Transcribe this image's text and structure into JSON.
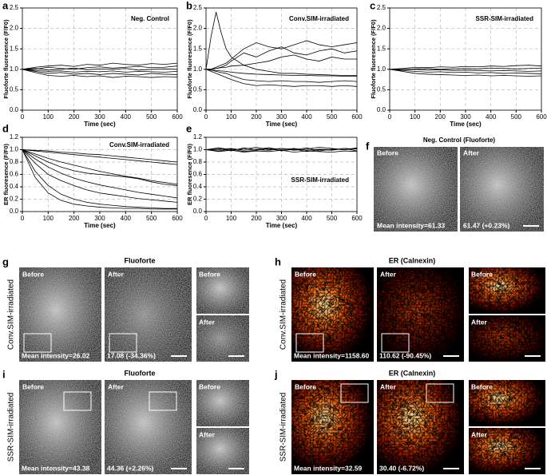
{
  "chart_data": [
    {
      "type": "line",
      "panel": "a",
      "annotation": "Neg. Control",
      "xlabel": "Time (sec)",
      "ylabel": "Fluoforte fluoresence (F/F0)",
      "x": [
        0,
        50,
        100,
        150,
        200,
        250,
        300,
        350,
        400,
        450,
        500,
        550,
        600
      ],
      "color": "#000000",
      "series": [
        {
          "values": [
            1,
            1.05,
            1.08,
            1.1,
            1.07,
            1.12,
            1.1,
            1.15,
            1.12,
            1.1,
            1.14,
            1.12,
            1.15
          ]
        },
        {
          "values": [
            1,
            0.95,
            0.9,
            0.92,
            0.88,
            0.9,
            0.87,
            0.9,
            0.88,
            0.86,
            0.9,
            0.88,
            0.87
          ]
        },
        {
          "values": [
            1,
            1.02,
            0.98,
            1.0,
            1.03,
            0.99,
            1.01,
            1.0,
            1.02,
            0.98,
            1.0,
            1.01,
            1.0
          ]
        },
        {
          "values": [
            1,
            0.92,
            0.85,
            0.83,
            0.85,
            0.82,
            0.84,
            0.8,
            0.83,
            0.82,
            0.8,
            0.82,
            0.81
          ]
        },
        {
          "values": [
            1,
            1.0,
            1.05,
            1.02,
            1.0,
            1.04,
            1.06,
            1.03,
            1.05,
            1.07,
            1.04,
            1.05,
            1.08
          ]
        },
        {
          "values": [
            1,
            0.97,
            0.95,
            0.96,
            0.93,
            0.95,
            0.94,
            0.96,
            0.93,
            0.95,
            0.94,
            0.93,
            0.95
          ]
        }
      ],
      "xlim": [
        0,
        600
      ],
      "xticks": [
        0,
        100,
        200,
        300,
        400,
        500,
        600
      ],
      "ylim": [
        0,
        2.5
      ],
      "yticks": [
        {
          "value": 0,
          "label": "0.0"
        },
        0.5,
        {
          "value": 1,
          "label": "1.0"
        },
        1.5,
        {
          "value": 2,
          "label": "2.0"
        },
        2.5
      ],
      "grid": true
    },
    {
      "type": "line",
      "panel": "b",
      "annotation": "Conv.SIM-irradiated",
      "xlabel": "Time (sec)",
      "ylabel": "Fluoforte fluoresence (F/F0)",
      "x": [
        0,
        20,
        40,
        60,
        80,
        100,
        150,
        200,
        250,
        300,
        350,
        400,
        450,
        500,
        550,
        600
      ],
      "color": "#000000",
      "series": [
        {
          "values": [
            1,
            1.8,
            2.4,
            1.9,
            1.5,
            1.3,
            1.1,
            1.0,
            0.95,
            0.9,
            0.9,
            0.88,
            0.87,
            0.86,
            0.85,
            0.85
          ]
        },
        {
          "values": [
            1,
            1,
            1.05,
            1.1,
            1.15,
            1.25,
            1.5,
            1.65,
            1.55,
            1.5,
            1.6,
            1.7,
            1.6,
            1.55,
            1.6,
            1.65
          ]
        },
        {
          "values": [
            1,
            1,
            1.02,
            1.05,
            1.1,
            1.2,
            1.4,
            1.3,
            1.45,
            1.55,
            1.4,
            1.35,
            1.45,
            1.5,
            1.4,
            1.45
          ]
        },
        {
          "values": [
            1,
            1,
            1.02,
            1.04,
            1.05,
            1.08,
            1.1,
            1.15,
            1.2,
            1.3,
            1.35,
            1.25,
            1.2,
            1.3,
            1.25,
            1.25
          ]
        },
        {
          "values": [
            1,
            0.95,
            0.9,
            0.85,
            0.8,
            0.75,
            0.65,
            0.6,
            0.62,
            0.6,
            0.58,
            0.6,
            0.6,
            0.58,
            0.6,
            0.58
          ]
        },
        {
          "values": [
            1,
            0.98,
            0.95,
            0.92,
            0.9,
            0.85,
            0.75,
            0.72,
            0.7,
            0.72,
            0.7,
            0.7,
            0.68,
            0.7,
            0.72,
            0.7
          ]
        },
        {
          "values": [
            1,
            0.98,
            0.97,
            0.96,
            0.95,
            0.93,
            0.9,
            0.88,
            0.87,
            0.86,
            0.85,
            0.85,
            0.84,
            0.84,
            0.83,
            0.83
          ]
        }
      ],
      "xlim": [
        0,
        600
      ],
      "xticks": [
        0,
        100,
        200,
        300,
        400,
        500,
        600
      ],
      "ylim": [
        0,
        2.5
      ],
      "yticks": [
        {
          "value": 0,
          "label": "0.0"
        },
        0.5,
        {
          "value": 1,
          "label": "1.0"
        },
        1.5,
        {
          "value": 2,
          "label": "2.0"
        },
        2.5
      ],
      "grid": true
    },
    {
      "type": "line",
      "panel": "c",
      "annotation": "SSR-SIM-irradiated",
      "xlabel": "Time (sec)",
      "ylabel": "Fluoforte fluoresence (F/F0)",
      "x": [
        0,
        50,
        100,
        150,
        200,
        250,
        300,
        350,
        400,
        450,
        500,
        550,
        600
      ],
      "color": "#000000",
      "series": [
        {
          "values": [
            1,
            1.02,
            1.05,
            1.04,
            1.06,
            1.05,
            1.07,
            1.06,
            1.08,
            1.07,
            1.09,
            1.1,
            1.08
          ]
        },
        {
          "values": [
            1,
            0.97,
            0.95,
            0.93,
            0.94,
            0.92,
            0.93,
            0.91,
            0.92,
            0.9,
            0.91,
            0.9,
            0.89
          ]
        },
        {
          "values": [
            1,
            0.99,
            1.0,
            0.98,
            0.99,
            0.97,
            0.98,
            0.97,
            0.96,
            0.97,
            0.96,
            0.95,
            0.96
          ]
        },
        {
          "values": [
            1,
            0.95,
            0.9,
            0.88,
            0.87,
            0.86,
            0.85,
            0.86,
            0.84,
            0.85,
            0.84,
            0.83,
            0.84
          ]
        },
        {
          "values": [
            1,
            1.0,
            1.01,
            1.02,
            1.0,
            1.01,
            1.02,
            1.01,
            1.03,
            1.02,
            1.01,
            1.02,
            1.03
          ]
        }
      ],
      "xlim": [
        0,
        600
      ],
      "xticks": [
        0,
        100,
        200,
        300,
        400,
        500,
        600
      ],
      "ylim": [
        0,
        2.5
      ],
      "yticks": [
        {
          "value": 0,
          "label": "0.0"
        },
        0.5,
        {
          "value": 1,
          "label": "1.0"
        },
        1.5,
        {
          "value": 2,
          "label": "2.0"
        },
        2.5
      ],
      "grid": true
    },
    {
      "type": "line",
      "panel": "d",
      "annotation": "Conv.SIM-irradiated",
      "xlabel": "Time (sec)",
      "ylabel": "ER fluoresence (F/F0)",
      "x": [
        0,
        50,
        100,
        150,
        200,
        250,
        300,
        350,
        400,
        450,
        500,
        550,
        600
      ],
      "color": "#000000",
      "series": [
        {
          "values": [
            1,
            0.99,
            0.98,
            0.96,
            0.95,
            0.93,
            0.92,
            0.9,
            0.88,
            0.86,
            0.84,
            0.82,
            0.8
          ]
        },
        {
          "values": [
            1,
            0.98,
            0.96,
            0.94,
            0.92,
            0.9,
            0.88,
            0.86,
            0.84,
            0.82,
            0.8,
            0.78,
            0.76
          ]
        },
        {
          "values": [
            1,
            0.93,
            0.86,
            0.8,
            0.75,
            0.7,
            0.65,
            0.61,
            0.57,
            0.54,
            0.5,
            0.47,
            0.44
          ]
        },
        {
          "values": [
            1,
            0.9,
            0.8,
            0.72,
            0.66,
            0.62,
            0.6,
            0.58,
            0.56,
            0.53,
            0.48,
            0.44,
            0.42
          ]
        },
        {
          "values": [
            1,
            0.85,
            0.72,
            0.62,
            0.54,
            0.48,
            0.43,
            0.39,
            0.35,
            0.31,
            0.28,
            0.25,
            0.22
          ]
        },
        {
          "values": [
            1,
            0.78,
            0.6,
            0.5,
            0.42,
            0.35,
            0.3,
            0.27,
            0.24,
            0.21,
            0.19,
            0.17,
            0.15
          ]
        },
        {
          "values": [
            1,
            0.65,
            0.42,
            0.28,
            0.2,
            0.15,
            0.12,
            0.1,
            0.08,
            0.07,
            0.06,
            0.05,
            0.05
          ]
        },
        {
          "values": [
            1,
            0.55,
            0.3,
            0.18,
            0.12,
            0.09,
            0.07,
            0.06,
            0.05,
            0.05,
            0.04,
            0.04,
            0.04
          ]
        }
      ],
      "xlim": [
        0,
        600
      ],
      "xticks": [
        0,
        100,
        200,
        300,
        400,
        500,
        600
      ],
      "ylim": [
        0,
        1.2
      ],
      "yticks": [
        {
          "value": 0,
          "label": "0.0"
        },
        0.2,
        0.4,
        0.6,
        0.8,
        {
          "value": 1,
          "label": "1.0"
        },
        1.2
      ],
      "grid": true
    },
    {
      "type": "line",
      "panel": "e",
      "annotation": "SSR-SIM-irradiated",
      "xlabel": "Time (sec)",
      "ylabel": "ER fluoresence (F/F0)",
      "x": [
        0,
        50,
        100,
        150,
        200,
        250,
        300,
        350,
        400,
        450,
        500,
        550,
        600
      ],
      "color": "#000000",
      "series": [
        {
          "values": [
            1,
            1.02,
            0.98,
            1.03,
            1.0,
            0.99,
            1.02,
            1.0,
            1.03,
            0.98,
            1.01,
            1.0,
            1.02
          ]
        },
        {
          "values": [
            1,
            0.98,
            1.01,
            0.97,
            0.99,
            1.02,
            0.98,
            1.01,
            0.97,
            1.0,
            0.99,
            1.02,
            0.98
          ]
        },
        {
          "values": [
            1,
            1.03,
            1.0,
            1.01,
            1.04,
            1.0,
            1.02,
            0.99,
            1.01,
            1.04,
            1.02,
            1.0,
            1.03
          ]
        },
        {
          "values": [
            1,
            0.97,
            0.99,
            0.96,
            0.98,
            0.97,
            0.99,
            0.96,
            0.98,
            0.97,
            0.96,
            0.98,
            0.97
          ]
        },
        {
          "values": [
            1,
            1.0,
            1.02,
            0.99,
            1.01,
            1.03,
            1.0,
            1.02,
            0.99,
            1.01,
            1.0,
            1.02,
            1.01
          ]
        }
      ],
      "xlim": [
        0,
        600
      ],
      "xticks": [
        0,
        100,
        200,
        300,
        400,
        500,
        600
      ],
      "ylim": [
        0,
        1.2
      ],
      "yticks": [
        {
          "value": 0,
          "label": "0.0"
        },
        0.2,
        0.4,
        0.6,
        0.8,
        {
          "value": 1,
          "label": "1.0"
        },
        1.2
      ],
      "grid": true
    }
  ],
  "image_panels": {
    "f": {
      "label": "f",
      "title": "Neg. Control (Fluoforte)",
      "before": "Before",
      "after": "After",
      "before_text": "Mean intensity=61.33",
      "after_text": "61.47 (+0.23%)"
    },
    "g": {
      "label": "g",
      "row_label": "Conv.SIM-irradiated",
      "title": "Fluoforte",
      "before": "Before",
      "after": "After",
      "inset_before": "Before",
      "inset_after": "After",
      "before_text": "Mean intensity=26.02",
      "after_text": "17.08 (-34.36%)"
    },
    "h": {
      "label": "h",
      "row_label": "Conv.SIM-irradiated",
      "title": "ER (Calnexin)",
      "before": "Before",
      "after": "After",
      "inset_before": "Before",
      "inset_after": "After",
      "before_text": "Mean intensity=1158.60",
      "after_text": "110.62 (-90.45%)"
    },
    "i": {
      "label": "i",
      "row_label": "SSR-SIM-irradiated",
      "title": "Fluoforte",
      "before": "Before",
      "after": "After",
      "inset_before": "Before",
      "inset_after": "After",
      "before_text": "Mean intensity=43.38",
      "after_text": "44.36 (+2.26%)"
    },
    "j": {
      "label": "j",
      "row_label": "SSR-SIM-irradiated",
      "title": "ER (Calnexin)",
      "before": "Before",
      "after": "After",
      "inset_before": "Before",
      "inset_after": "After",
      "before_text": "Mean intensity=32.59",
      "after_text": "30.40 (-6.72%)"
    }
  }
}
